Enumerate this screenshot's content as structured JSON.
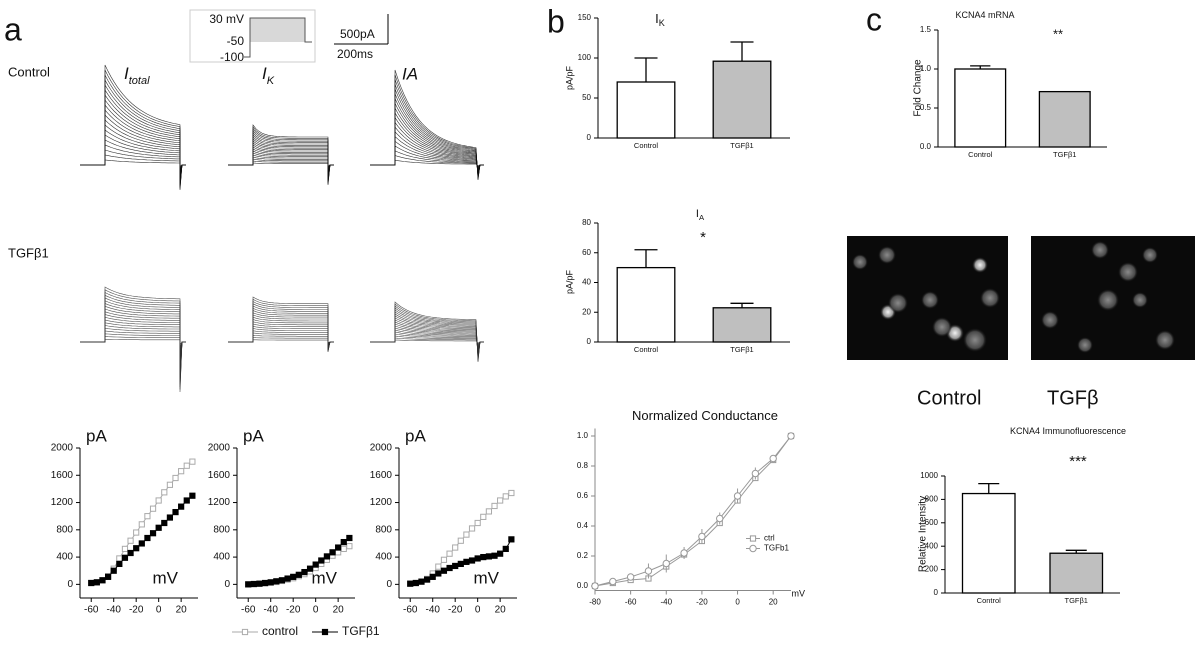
{
  "panel_labels": [
    "a",
    "b",
    "c"
  ],
  "protocol": {
    "labels": [
      "30 mV",
      "-50",
      "-100"
    ],
    "scale": [
      "500pA",
      "200ms"
    ]
  },
  "traces": {
    "rows": [
      "Control",
      "TGFβ1"
    ],
    "columns": [
      {
        "main": "I",
        "sub": "total"
      },
      {
        "main": "I",
        "sub": "K"
      },
      {
        "main": "IA"
      }
    ]
  },
  "images": {
    "labels": [
      "Control",
      "TGFβ"
    ]
  },
  "chart_data": [
    {
      "type": "line",
      "y_label": "pA",
      "x_label": "mV",
      "x": [
        -60,
        -55,
        -50,
        -45,
        -40,
        -35,
        -30,
        -25,
        -20,
        -15,
        -10,
        -5,
        0,
        5,
        10,
        15,
        20,
        25,
        30
      ],
      "series": [
        {
          "name": "control",
          "color": "#aaaaaa",
          "marker": "square-open",
          "values": [
            20,
            30,
            60,
            120,
            230,
            380,
            520,
            640,
            760,
            880,
            1000,
            1110,
            1230,
            1350,
            1460,
            1560,
            1660,
            1740,
            1800
          ]
        },
        {
          "name": "TGFβ1",
          "color": "#000000",
          "marker": "square-filled",
          "values": [
            20,
            30,
            60,
            110,
            200,
            300,
            390,
            460,
            530,
            600,
            680,
            750,
            830,
            900,
            980,
            1060,
            1140,
            1230,
            1300
          ]
        }
      ],
      "xlim": [
        -70,
        35
      ],
      "ylim": [
        -200,
        2000
      ],
      "xticks": [
        -60,
        -40,
        -20,
        0,
        20
      ],
      "yticks": [
        0,
        400,
        800,
        1200,
        1600,
        2000
      ],
      "legend": "below"
    },
    {
      "type": "line",
      "y_label": "pA",
      "x_label": "mV",
      "x": [
        -60,
        -55,
        -50,
        -45,
        -40,
        -35,
        -30,
        -25,
        -20,
        -15,
        -10,
        -5,
        0,
        5,
        10,
        15,
        20,
        25,
        30
      ],
      "series": [
        {
          "color": "#aaaaaa",
          "marker": "square-open",
          "values": [
            0,
            5,
            10,
            15,
            25,
            35,
            50,
            70,
            90,
            120,
            150,
            190,
            240,
            300,
            360,
            420,
            470,
            520,
            560
          ]
        },
        {
          "color": "#000000",
          "marker": "square-filled",
          "values": [
            0,
            5,
            10,
            20,
            30,
            45,
            60,
            85,
            110,
            140,
            180,
            230,
            290,
            350,
            410,
            470,
            540,
            620,
            680
          ]
        }
      ],
      "xlim": [
        -70,
        35
      ],
      "ylim": [
        -200,
        2000
      ],
      "xticks": [
        -60,
        -40,
        -20,
        0,
        20
      ],
      "yticks": [
        0,
        400,
        800,
        1200,
        1600,
        2000
      ]
    },
    {
      "type": "line",
      "y_label": "pA",
      "x_label": "mV",
      "x": [
        -60,
        -55,
        -50,
        -45,
        -40,
        -35,
        -30,
        -25,
        -20,
        -15,
        -10,
        -5,
        0,
        5,
        10,
        15,
        20,
        25,
        30
      ],
      "series": [
        {
          "color": "#aaaaaa",
          "marker": "square-open",
          "values": [
            10,
            20,
            40,
            80,
            160,
            260,
            360,
            450,
            540,
            640,
            730,
            820,
            900,
            990,
            1070,
            1150,
            1230,
            1290,
            1340
          ]
        },
        {
          "color": "#000000",
          "marker": "square-filled",
          "values": [
            10,
            20,
            40,
            70,
            110,
            160,
            200,
            240,
            270,
            300,
            330,
            350,
            380,
            400,
            410,
            420,
            450,
            520,
            660
          ]
        }
      ],
      "xlim": [
        -70,
        35
      ],
      "ylim": [
        -200,
        2000
      ],
      "xticks": [
        -60,
        -40,
        -20,
        0,
        20
      ],
      "yticks": [
        0,
        400,
        800,
        1200,
        1600,
        2000
      ]
    },
    {
      "type": "bar",
      "title": "I",
      "title_sub": "K",
      "y_label": "pA/pF",
      "categories": [
        "Control",
        "TGFβ1"
      ],
      "values": [
        70,
        96
      ],
      "errors": [
        30,
        24
      ],
      "colors": [
        "#ffffff",
        "#bfbfbf"
      ],
      "ylim": [
        0,
        150
      ],
      "yticks": [
        0,
        50,
        100,
        150
      ]
    },
    {
      "type": "bar",
      "title": "I",
      "title_sub": "A",
      "significance": "*",
      "y_label": "pA/pF",
      "categories": [
        "Control",
        "TGFβ1"
      ],
      "values": [
        50,
        23
      ],
      "errors": [
        12,
        3
      ],
      "colors": [
        "#ffffff",
        "#bfbfbf"
      ],
      "ylim": [
        0,
        80
      ],
      "yticks": [
        0,
        20,
        40,
        60,
        80
      ]
    },
    {
      "type": "line",
      "title": "Normalized Conductance",
      "x_label": "mV",
      "x": [
        -80,
        -70,
        -60,
        -50,
        -40,
        -30,
        -20,
        -10,
        0,
        10,
        20,
        30
      ],
      "series": [
        {
          "name": "ctrl",
          "color": "#999999",
          "marker": "square-open",
          "values": [
            0,
            0.02,
            0.04,
            0.05,
            0.13,
            0.21,
            0.3,
            0.42,
            0.57,
            0.72,
            0.84,
            1.0
          ]
        },
        {
          "name": "TGFb1",
          "color": "#999999",
          "marker": "circle-open",
          "values": [
            0,
            0.03,
            0.06,
            0.1,
            0.15,
            0.22,
            0.33,
            0.45,
            0.6,
            0.75,
            0.85,
            1.0
          ],
          "errors": [
            0,
            0.01,
            0.02,
            0.05,
            0.06,
            0.04,
            0.05,
            0.04,
            0.05,
            0.04,
            0.02,
            0
          ]
        }
      ],
      "xlim": [
        -80,
        30
      ],
      "ylim": [
        -0.03,
        1.05
      ],
      "xticks": [
        -80,
        -60,
        -40,
        -20,
        0,
        20
      ],
      "yticks": [
        {
          "value": 0,
          "label": "0.0"
        },
        0.2,
        0.4,
        0.6,
        0.8,
        {
          "value": 1,
          "label": "1.0"
        }
      ],
      "legend": "lower right"
    },
    {
      "type": "bar",
      "title": "KCNA4 mRNA",
      "significance": "**",
      "y_label": "Fold Change",
      "categories": [
        "Control",
        "TGFβ1"
      ],
      "values": [
        1.0,
        0.71
      ],
      "errors": [
        0.04,
        0
      ],
      "colors": [
        "#ffffff",
        "#bfbfbf"
      ],
      "ylim": [
        0,
        1.5
      ],
      "yticks": [
        {
          "value": 0,
          "label": "0.0"
        },
        0.5,
        {
          "value": 1,
          "label": "1.0"
        },
        1.5
      ]
    },
    {
      "type": "bar",
      "title": "KCNA4 Immunofluorescence",
      "significance": "***",
      "y_label": "Relative Intensity",
      "categories": [
        "Control",
        "TGFβ1"
      ],
      "values": [
        850,
        340
      ],
      "errors": [
        85,
        25
      ],
      "colors": [
        "#ffffff",
        "#bfbfbf"
      ],
      "ylim": [
        0,
        1000
      ],
      "yticks": [
        0,
        200,
        400,
        600,
        800,
        1000
      ]
    }
  ]
}
